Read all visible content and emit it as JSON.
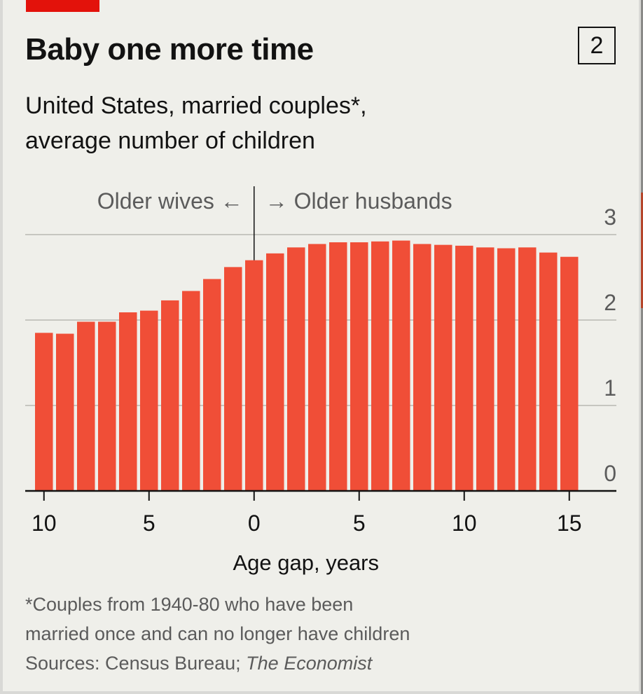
{
  "header": {
    "title": "Baby one more time",
    "chart_number": "2",
    "subtitle_line1": "United States, married couples*,",
    "subtitle_line2": "average number of children"
  },
  "colors": {
    "bar": "#f04e37",
    "brand_red": "#e3120b",
    "background": "#efefea",
    "grid": "#c6c6c0",
    "text": "#121212",
    "muted_text": "#5b5b5b"
  },
  "chart_data": {
    "type": "bar",
    "title": "Baby one more time",
    "subtitle": "United States, married couples*, average number of children",
    "xlabel": "Age gap, years",
    "ylabel": "",
    "annotation_left": "Older wives ←",
    "annotation_right": "→ Older husbands",
    "x": [
      -10,
      -9,
      -8,
      -7,
      -6,
      -5,
      -4,
      -3,
      -2,
      -1,
      0,
      1,
      2,
      3,
      4,
      5,
      6,
      7,
      8,
      9,
      10,
      11,
      12,
      13,
      14,
      15
    ],
    "values": [
      1.85,
      1.84,
      1.98,
      1.98,
      2.09,
      2.11,
      2.23,
      2.34,
      2.48,
      2.62,
      2.7,
      2.78,
      2.85,
      2.89,
      2.91,
      2.91,
      2.92,
      2.93,
      2.89,
      2.88,
      2.87,
      2.85,
      2.84,
      2.85,
      2.79,
      2.74
    ],
    "x_ticks": [
      {
        "value": -10,
        "label": "10"
      },
      {
        "value": -5,
        "label": "5"
      },
      {
        "value": 0,
        "label": "0"
      },
      {
        "value": 5,
        "label": "5"
      },
      {
        "value": 10,
        "label": "10"
      },
      {
        "value": 15,
        "label": "15"
      }
    ],
    "y_ticks": [
      0,
      1,
      2,
      3
    ],
    "ylim": [
      0,
      3
    ],
    "grid": true,
    "y_tick_side": "right"
  },
  "footnote": {
    "line1": "*Couples from 1940-80 who have been",
    "line2": "married once and can no longer have children",
    "source_prefix": "Sources: Census Bureau; ",
    "source_italic": "The Economist"
  }
}
